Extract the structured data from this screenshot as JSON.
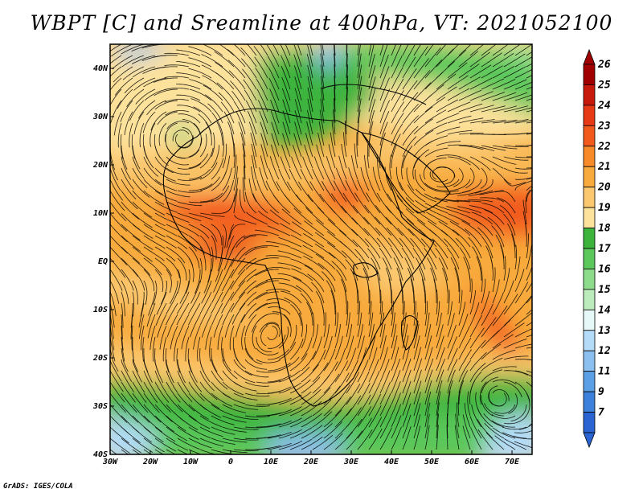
{
  "title": "WBPT [C] and Sreamline at 400hPa, VT: 2021052100",
  "credit": "GrADS: IGES/COLA",
  "map": {
    "lon_range": [
      -30,
      75
    ],
    "lat_range": [
      -40,
      45
    ],
    "lon_ticks": [
      "30W",
      "20W",
      "10W",
      "0",
      "10E",
      "20E",
      "30E",
      "40E",
      "50E",
      "60E",
      "70E"
    ],
    "lat_ticks": [
      "40S",
      "30S",
      "20S",
      "10S",
      "EQ",
      "10N",
      "20N",
      "30N",
      "40N"
    ],
    "field": "wet-bulb potential temperature with streamlines"
  },
  "colorbar": {
    "labels": [
      "26",
      "25",
      "24",
      "23",
      "22",
      "21",
      "20",
      "19",
      "18",
      "17",
      "16",
      "15",
      "14",
      "13",
      "12",
      "11",
      "9",
      "7"
    ],
    "colors": [
      "#a00000",
      "#c81a0a",
      "#e63a14",
      "#f25a1c",
      "#f88a28",
      "#f8aa3c",
      "#fbc870",
      "#fde29c",
      "#3cb43c",
      "#5ac85a",
      "#8cdc8c",
      "#bcecbc",
      "#e6f8f8",
      "#b4dcf8",
      "#8cc0f0",
      "#5aa0e6",
      "#3c82dc",
      "#2a64d2"
    ]
  }
}
